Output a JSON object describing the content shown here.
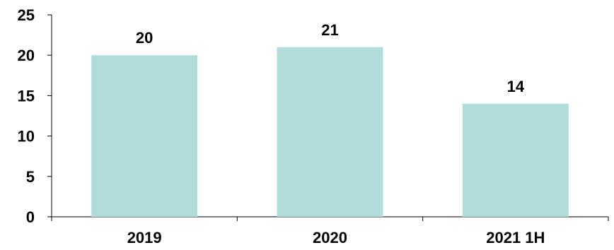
{
  "chart_data": {
    "type": "bar",
    "categories": [
      "2019",
      "2020",
      "2021 1H"
    ],
    "values": [
      20,
      21,
      14
    ],
    "data_labels": [
      "20",
      "21",
      "14"
    ],
    "title": "",
    "xlabel": "",
    "ylabel": "",
    "ylim": [
      0,
      25
    ],
    "yticks": [
      0,
      5,
      10,
      15,
      20,
      25
    ],
    "ytick_labels": [
      "0",
      "5",
      "10",
      "15",
      "20",
      "25"
    ],
    "grid": false,
    "legend": "none",
    "bar_color": "#b2dcdb",
    "axis_color": "#000000"
  }
}
